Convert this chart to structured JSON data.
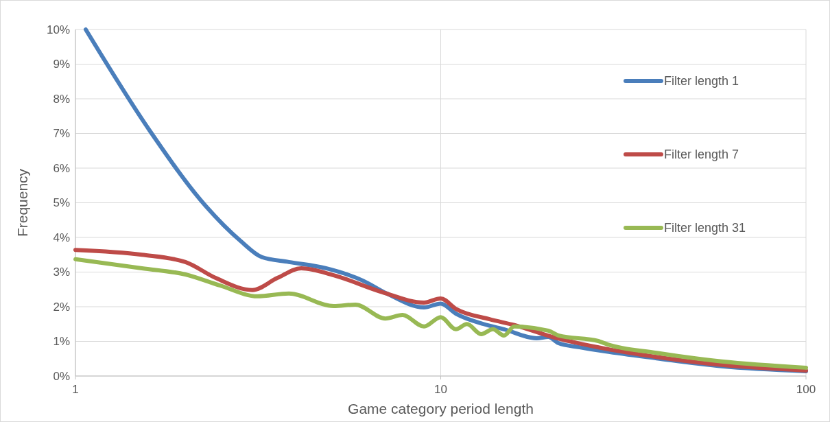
{
  "chart_data": {
    "type": "line",
    "xlabel": "Game category period length",
    "ylabel": "Frequency",
    "log": "x",
    "xlim": [
      1,
      100
    ],
    "xticks": [
      1,
      10,
      100
    ],
    "ylim": [
      0,
      10
    ],
    "yticks": [
      {
        "value": 0,
        "label": "0%"
      },
      {
        "value": 1,
        "label": "1%"
      },
      {
        "value": 2,
        "label": "2%"
      },
      {
        "value": 3,
        "label": "3%"
      },
      {
        "value": 4,
        "label": "4%"
      },
      {
        "value": 5,
        "label": "5%"
      },
      {
        "value": 6,
        "label": "6%"
      },
      {
        "value": 7,
        "label": "7%"
      },
      {
        "value": 8,
        "label": "8%"
      },
      {
        "value": 9,
        "label": "9%"
      },
      {
        "value": 10,
        "label": "10%"
      }
    ],
    "grid": true,
    "legend": "right",
    "line_style": "solid",
    "marker": "none",
    "series": [
      {
        "name": "Filter length 1",
        "color": "#4a7ebb",
        "x": [
          1.067,
          1.6,
          2.28,
          2.83,
          3.24,
          3.84,
          4.85,
          6.13,
          7.12,
          9.0,
          10,
          11,
          13.1,
          14.9,
          18.3,
          19.7,
          21,
          24,
          28.2,
          39,
          58.8,
          100
        ],
        "values": [
          10.0,
          7.07,
          4.89,
          3.9,
          3.43,
          3.29,
          3.11,
          2.75,
          2.38,
          1.98,
          2.09,
          1.8,
          1.5,
          1.35,
          1.09,
          1.13,
          0.95,
          0.83,
          0.71,
          0.51,
          0.28,
          0.14
        ]
      },
      {
        "name": "Filter length 7",
        "color": "#be4b48",
        "x": [
          1,
          1.52,
          2.0,
          2.42,
          3.05,
          3.57,
          4.15,
          5.09,
          6.92,
          9.0,
          10,
          11,
          13.6,
          15.9,
          20.8,
          28.2,
          39,
          58.8,
          100
        ],
        "values": [
          3.64,
          3.5,
          3.29,
          2.83,
          2.48,
          2.83,
          3.11,
          2.91,
          2.42,
          2.12,
          2.24,
          1.94,
          1.64,
          1.47,
          1.09,
          0.79,
          0.55,
          0.32,
          0.16
        ]
      },
      {
        "name": "Filter length 31",
        "color": "#98b954",
        "x": [
          1,
          1.52,
          2.0,
          2.49,
          3.15,
          3.84,
          5.09,
          5.84,
          7.05,
          7.86,
          9.0,
          10,
          11,
          11.8,
          12.9,
          13.9,
          14.9,
          15.9,
          19.7,
          21,
          27,
          28.7,
          39,
          58.8,
          100
        ],
        "values": [
          3.37,
          3.11,
          2.93,
          2.61,
          2.3,
          2.38,
          2.02,
          2.06,
          1.66,
          1.76,
          1.43,
          1.7,
          1.35,
          1.5,
          1.21,
          1.35,
          1.17,
          1.43,
          1.31,
          1.17,
          1.01,
          0.91,
          0.67,
          0.42,
          0.24
        ]
      }
    ]
  }
}
